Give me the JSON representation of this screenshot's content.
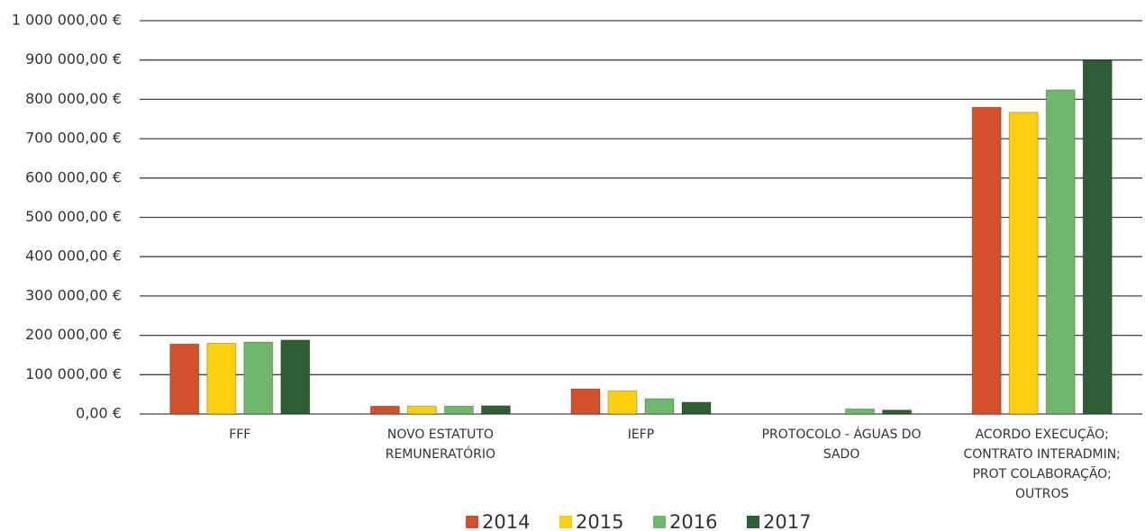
{
  "chart_data": {
    "type": "bar",
    "categories": [
      [
        "FFF"
      ],
      [
        "NOVO ESTATUTO",
        "REMUNERATÓRIO"
      ],
      [
        "IEFP"
      ],
      [
        "PROTOCOLO - ÁGUAS DO",
        "SADO"
      ],
      [
        "ACORDO EXECUÇÃO;",
        "CONTRATO INTERADMIN;",
        "PROT COLABORAÇÃO;",
        "OUTROS"
      ]
    ],
    "series": [
      {
        "name": "2014",
        "color": "#d3502a",
        "values": [
          178000,
          20000,
          64000,
          0,
          780000
        ]
      },
      {
        "name": "2015",
        "color": "#f9cf0e",
        "values": [
          180000,
          20000,
          59000,
          0,
          767000
        ]
      },
      {
        "name": "2016",
        "color": "#6db86a",
        "values": [
          183000,
          20000,
          39000,
          13000,
          824000
        ]
      },
      {
        "name": "2017",
        "color": "#2e5e34",
        "values": [
          188000,
          21000,
          30000,
          10000,
          899000
        ]
      }
    ],
    "ylim": [
      0,
      1000000
    ],
    "yticks": [
      {
        "value": 0,
        "label": "0,00 €"
      },
      {
        "value": 100000,
        "label": "100 000,00 €"
      },
      {
        "value": 200000,
        "label": "200 000,00 €"
      },
      {
        "value": 300000,
        "label": "300 000,00 €"
      },
      {
        "value": 400000,
        "label": "400 000,00 €"
      },
      {
        "value": 500000,
        "label": "500 000,00 €"
      },
      {
        "value": 600000,
        "label": "600 000,00 €"
      },
      {
        "value": 700000,
        "label": "700 000,00 €"
      },
      {
        "value": 800000,
        "label": "800 000,00 €"
      },
      {
        "value": 900000,
        "label": "900 000,00 €"
      },
      {
        "value": 1000000,
        "label": "1 000 000,00 €"
      }
    ],
    "grid": true,
    "legend": "bottom"
  }
}
